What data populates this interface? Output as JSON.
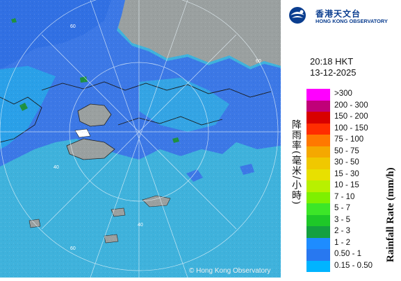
{
  "logo": {
    "name_cn": "香港天文台",
    "name_en": "HONG KONG OBSERVATORY",
    "brand_color": "#0a3d8f"
  },
  "timestamp": {
    "time": "20:18 HKT",
    "date": "13-12-2025"
  },
  "legend": {
    "title_cn": "降雨率(毫米/小時)",
    "title_en": "Rainfall Rate (mm/h)",
    "items": [
      {
        "label": ">300",
        "color": "#ff00ff"
      },
      {
        "label": "200 - 300",
        "color": "#c00078"
      },
      {
        "label": "150 - 200",
        "color": "#d80000"
      },
      {
        "label": "100 - 150",
        "color": "#ff2d00"
      },
      {
        "label": "75 - 100",
        "color": "#ff7800"
      },
      {
        "label": "50 - 75",
        "color": "#f5a800"
      },
      {
        "label": "30 - 50",
        "color": "#f0c800"
      },
      {
        "label": "15 - 30",
        "color": "#e8e000"
      },
      {
        "label": "10 - 15",
        "color": "#b8f000"
      },
      {
        "label": "7 - 10",
        "color": "#7ef000"
      },
      {
        "label": "5 - 7",
        "color": "#3ce628"
      },
      {
        "label": "3 - 5",
        "color": "#1ec828"
      },
      {
        "label": "2 - 3",
        "color": "#14a040"
      },
      {
        "label": "1 - 2",
        "color": "#1e8cff"
      },
      {
        "label": "0.50 - 1",
        "color": "#2878f0"
      },
      {
        "label": "0.15 - 0.50",
        "color": "#00b4ff"
      }
    ]
  },
  "map": {
    "ring_labels": [
      "60",
      "40",
      "60",
      "40",
      "60"
    ],
    "colors": {
      "sea": "#3fb2dc",
      "rain_light": "#28a8e8",
      "rain_medium": "#3c78e6",
      "rain_heavy": "#1e9040",
      "land": "#9aa0a0"
    }
  },
  "copyright": "© Hong Kong Observatory"
}
